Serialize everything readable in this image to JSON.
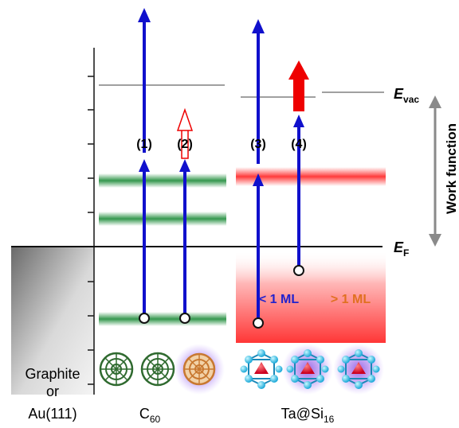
{
  "labels": {
    "evac_main": "E",
    "evac_sub": "vac",
    "ef_main": "E",
    "ef_sub": "F",
    "work_function": "Work function",
    "p1": "(1)",
    "p2": "(2)",
    "p3": "(3)",
    "p4": "(4)",
    "lt_1ml": "< 1 ML",
    "gt_1ml": "> 1 ML",
    "substrate_line1": "Graphite",
    "substrate_line2": "or",
    "substrate_line3": "Au(111)",
    "c60_main": "C",
    "c60_sub": "60",
    "tasi_main": "Ta@Si",
    "tasi_sub": "16"
  },
  "colors": {
    "arrow_blue": "#1010cc",
    "arrow_red": "#ee0000",
    "level_green": "#1e8c3a",
    "red_band": "#ff5050",
    "vacuum_gray": "#9a9a9a",
    "ml_blue": "#2222cc",
    "ml_orange": "#e07020"
  },
  "icons": [
    "c60-molecule-icon",
    "c60-doped-molecule-icon",
    "tasi16-molecule-icon"
  ]
}
